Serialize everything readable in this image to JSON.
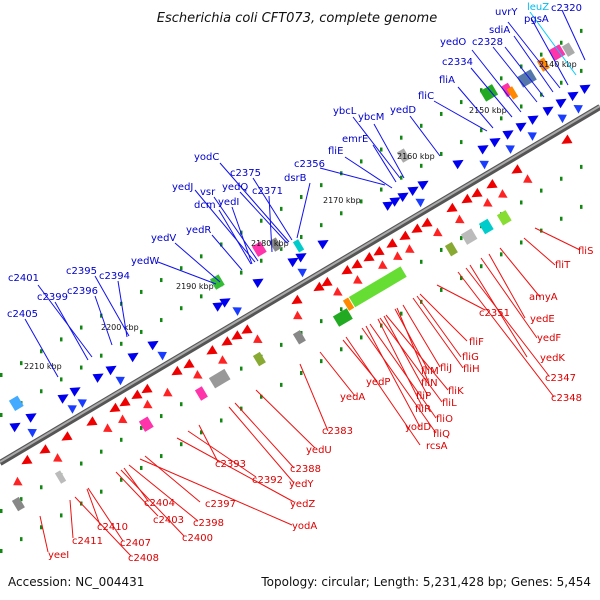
{
  "title": "Escherichia coli CFT073, complete genome",
  "footer": {
    "accession": "Accession: NC_004431",
    "summary": "Topology: circular; Length: 5,231,428 bp; Genes: 5,454"
  },
  "colors": {
    "forward_strand": "#0000ee",
    "reverse_strand": "#ee0000",
    "forward_label": "#0000cc",
    "reverse_label": "#dd0000",
    "rna_label": "#00bbee",
    "backbone": "#777777",
    "tick": "#118811"
  },
  "coordinates": [
    "2140 kbp",
    "2150 kbp",
    "2160 kbp",
    "2170 kbp",
    "2180 kbp",
    "2190 kbp",
    "2200 kbp",
    "2210 kbp"
  ],
  "forward_genes": [
    "leuZ",
    "c2320",
    "uvrY",
    "pgsA",
    "sdiA",
    "c2328",
    "yedO",
    "c2334",
    "fliA",
    "fliC",
    "yedD",
    "ybcL",
    "ybcM",
    "emrE",
    "fliE",
    "c2356",
    "dsrB",
    "yodC",
    "c2375",
    "yedQ",
    "c2371",
    "yedJ",
    "vsr",
    "dcm",
    "yedI",
    "yedR",
    "yedV",
    "yedW",
    "c2395",
    "c2394",
    "c2401",
    "c2396",
    "c2399",
    "c2405"
  ],
  "reverse_genes": [
    "fliS",
    "fliT",
    "amyA",
    "yedE",
    "yedF",
    "yedK",
    "c2347",
    "c2348",
    "c2351",
    "fliF",
    "fliG",
    "fliH",
    "fliM",
    "fliJ",
    "fliN",
    "fliK",
    "fliP",
    "fliL",
    "fliR",
    "fliO",
    "yodD",
    "fliQ",
    "rcsA",
    "yedP",
    "yedA",
    "c2383",
    "yedU",
    "c2388",
    "yedY",
    "c2393",
    "c2392",
    "yedZ",
    "c2397",
    "yodA",
    "c2404",
    "c2398",
    "c2403",
    "c2400",
    "c2410",
    "c2407",
    "c2411",
    "c2408",
    "yeeI"
  ]
}
